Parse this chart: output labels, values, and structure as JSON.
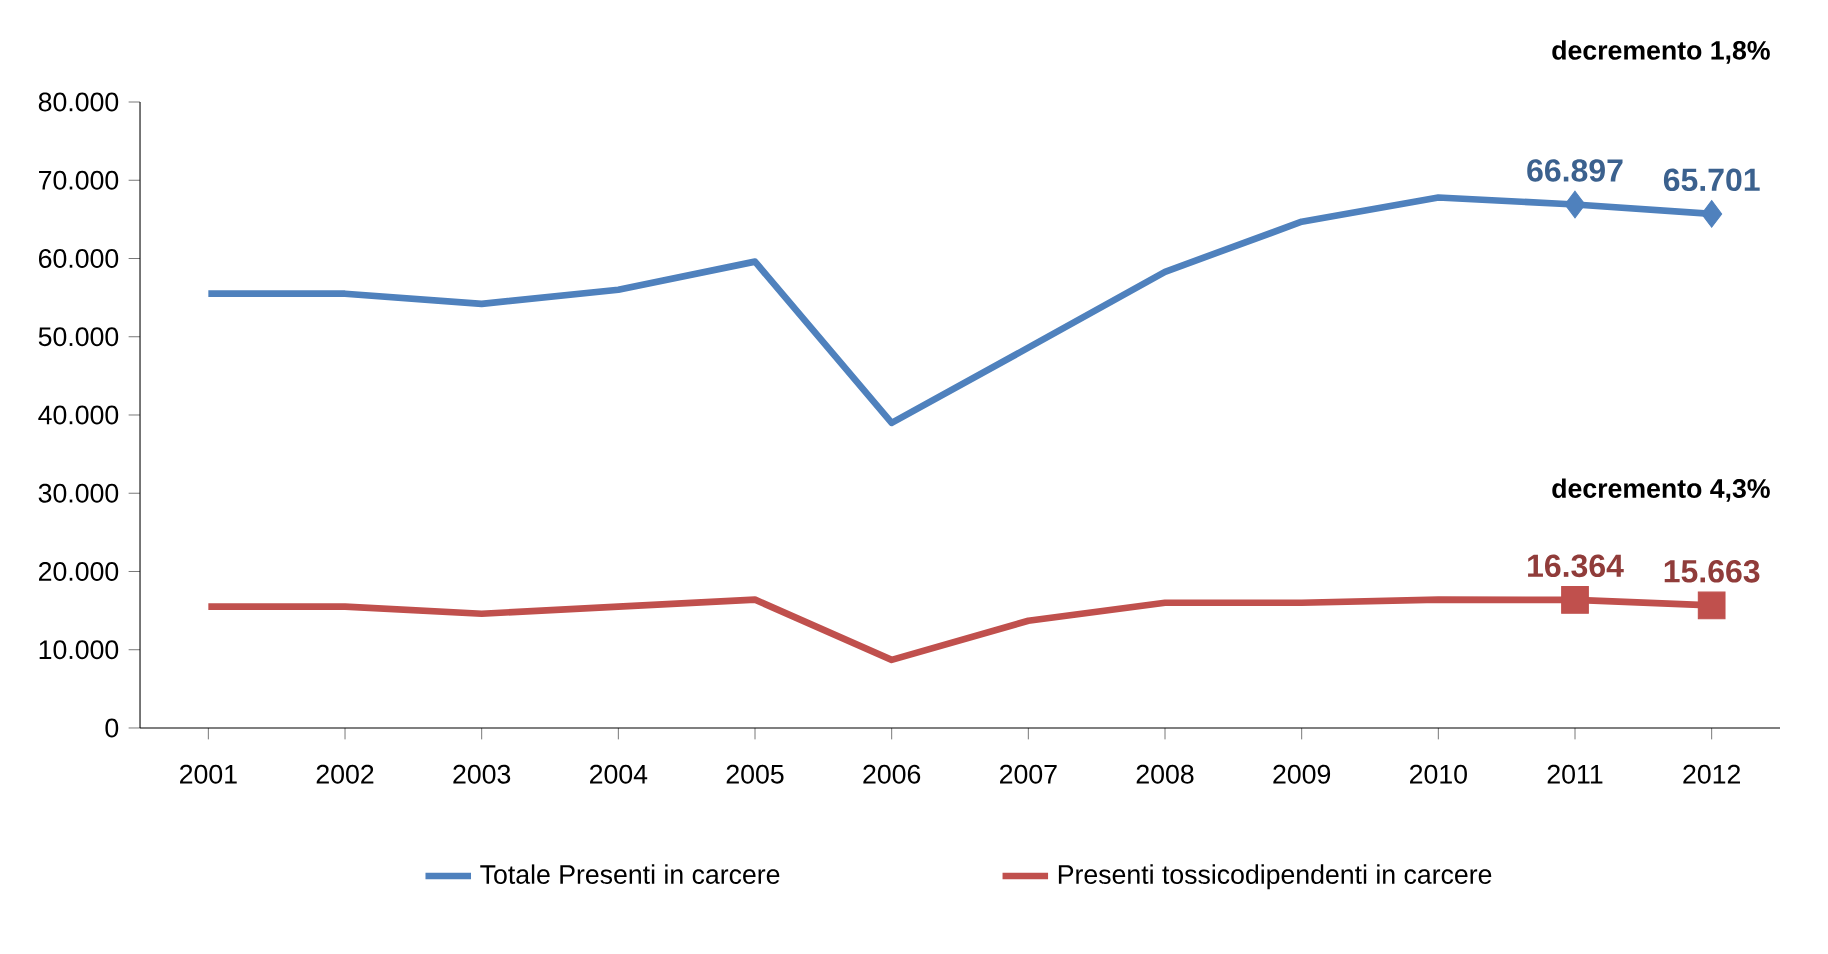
{
  "chart_data": {
    "type": "line",
    "categories": [
      "2001",
      "2002",
      "2003",
      "2004",
      "2005",
      "2006",
      "2007",
      "2008",
      "2009",
      "2010",
      "2011",
      "2012"
    ],
    "series": [
      {
        "name": "Totale  Presenti in carcere",
        "color": "#4f81bd",
        "values": [
          55500,
          55500,
          54200,
          56000,
          59600,
          39000,
          48600,
          58300,
          64700,
          67800,
          66897,
          65701
        ],
        "value_labels": [
          null,
          null,
          null,
          null,
          null,
          null,
          null,
          null,
          null,
          null,
          "66.897",
          "65.701"
        ]
      },
      {
        "name": "Presenti tossicodipendenti in carcere",
        "color": "#c0504d",
        "values": [
          15500,
          15500,
          14600,
          15500,
          16400,
          8700,
          13700,
          16000,
          16000,
          16400,
          16364,
          15663
        ],
        "value_labels": [
          null,
          null,
          null,
          null,
          null,
          null,
          null,
          null,
          null,
          null,
          "16.364",
          "15.663"
        ]
      }
    ],
    "ylim": [
      0,
      80000
    ],
    "yticks": [
      {
        "value": 0,
        "label": "0"
      },
      {
        "value": 10000,
        "label": "10.000"
      },
      {
        "value": 20000,
        "label": "20.000"
      },
      {
        "value": 30000,
        "label": "30.000"
      },
      {
        "value": 40000,
        "label": "40.000"
      },
      {
        "value": 50000,
        "label": "50.000"
      },
      {
        "value": 60000,
        "label": "60.000"
      },
      {
        "value": 70000,
        "label": "70.000"
      },
      {
        "value": 80000,
        "label": "80.000"
      }
    ],
    "annotations": [
      "decremento **1,8%**",
      "decremento  4,3%"
    ],
    "legend": "bottom",
    "grid": false,
    "line_style": "solid"
  }
}
